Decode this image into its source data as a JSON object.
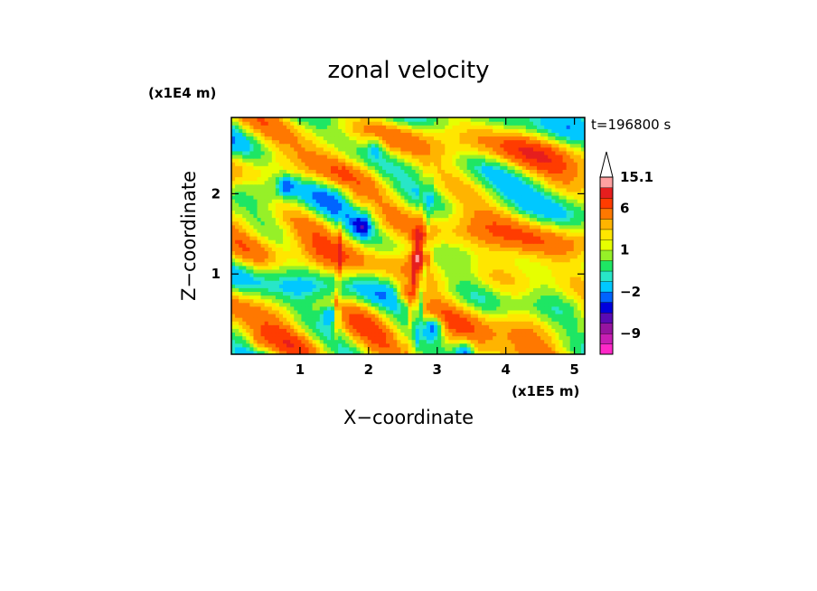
{
  "chart_data": {
    "type": "heatmap",
    "title": "zonal velocity",
    "time_label": "t=196800 s",
    "xlabel": "X−coordinate",
    "ylabel": "Z−coordinate",
    "x_unit": "(x1E5 m)",
    "y_unit": "(x1E4 m)",
    "xlim": [
      0,
      5.15
    ],
    "ylim": [
      0,
      2.95
    ],
    "x_ticks": [
      1,
      2,
      3,
      4,
      5
    ],
    "y_ticks": [
      1,
      2
    ],
    "x_tick_labels": [
      "1",
      "2",
      "3",
      "4",
      "5"
    ],
    "y_tick_labels": [
      "1",
      "2"
    ],
    "colorbar": {
      "levels": [
        -13,
        -11,
        -9,
        -7,
        -5,
        -3.5,
        -2,
        -1.5,
        -0.5,
        0.5,
        1,
        2,
        3,
        4.5,
        6,
        9,
        12,
        15.1
      ],
      "colors": [
        "#ff28c8",
        "#c81eb4",
        "#9614a0",
        "#5a0ab4",
        "#0000dc",
        "#0064ff",
        "#00c8ff",
        "#28e6c8",
        "#1ee664",
        "#96f028",
        "#e6ff00",
        "#ffe600",
        "#ffb400",
        "#ff7800",
        "#ff3c00",
        "#e61e1e",
        "#ffa0a0",
        "#ffc8c8"
      ],
      "tick_labels": [
        "15.1",
        "6",
        "1",
        "−2",
        "−9"
      ],
      "tick_values": [
        15.1,
        6,
        1,
        -2,
        -9
      ],
      "extend": "max"
    },
    "field_features": [
      {
        "x": 2.75,
        "z": 1.2,
        "value": 8
      },
      {
        "x": 2.75,
        "z": 1.45,
        "value": 4
      },
      {
        "x": 2.55,
        "z": 0.75,
        "value": 4
      },
      {
        "x": 1.9,
        "z": 1.6,
        "value": -5
      },
      {
        "x": 0.8,
        "z": 2.1,
        "value": -4
      },
      {
        "x": 2.1,
        "z": 2.6,
        "value": -3
      },
      {
        "x": 2.95,
        "z": 0.35,
        "value": -6
      },
      {
        "x": 3.4,
        "z": 0.05,
        "value": -5
      },
      {
        "x": 1.45,
        "z": 0.5,
        "value": -5
      },
      {
        "x": 1.8,
        "z": 1.9,
        "value": 2
      },
      {
        "x": 3.8,
        "z": 2.6,
        "value": -0.2
      },
      {
        "x": 0.9,
        "z": 1.3,
        "value": -0.3
      },
      {
        "x": 4.8,
        "z": 1.0,
        "value": -0.2
      },
      {
        "x": 0.4,
        "z": 0.15,
        "value": 1.6
      }
    ]
  }
}
